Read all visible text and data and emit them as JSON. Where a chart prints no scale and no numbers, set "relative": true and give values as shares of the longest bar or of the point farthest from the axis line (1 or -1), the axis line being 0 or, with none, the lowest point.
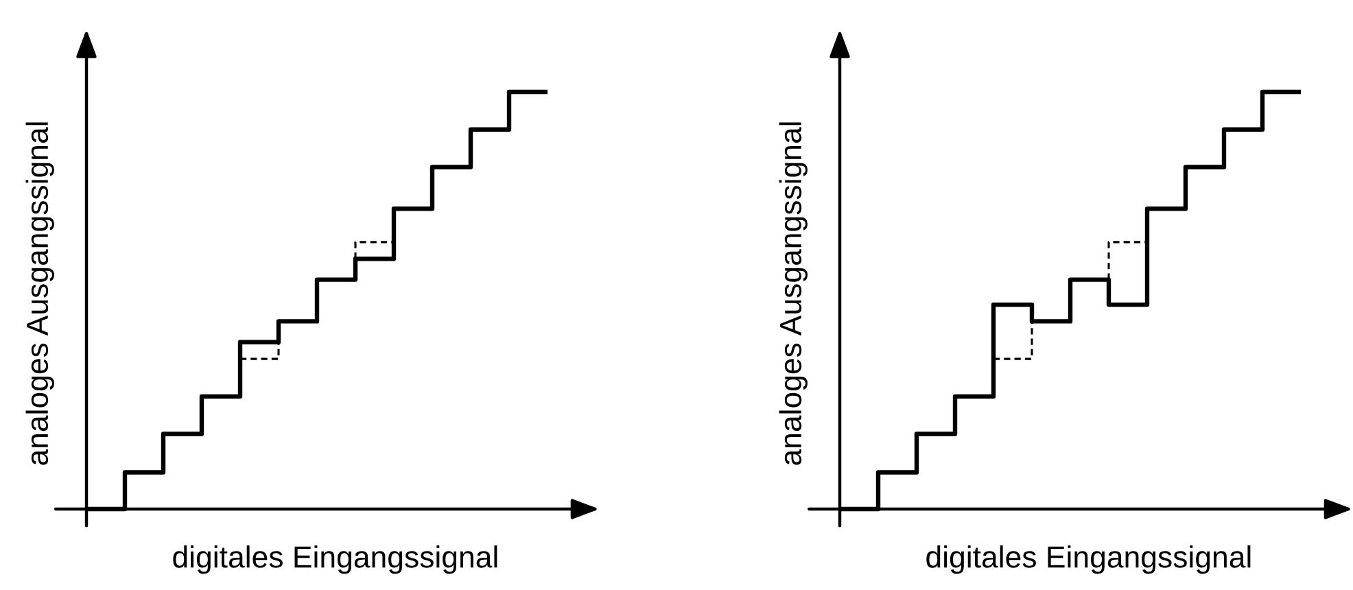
{
  "chart_data": [
    {
      "type": "step",
      "relative": true,
      "xlabel": "digitales Eingangssignal",
      "ylabel": "analoges Ausgangssignal",
      "categories": [
        null,
        null,
        null,
        null,
        null,
        null,
        null,
        null,
        null,
        null,
        null,
        null,
        null
      ],
      "series": [
        {
          "color": "#000000",
          "line_style": "solid",
          "values": [
            0,
            0.088,
            0.18,
            0.27,
            0.4,
            0.45,
            0.55,
            0.6,
            0.72,
            0.82,
            0.91,
            1.0,
            1.0
          ]
        },
        {
          "color": "#000000",
          "line_style": "dashed",
          "values": [
            null,
            null,
            null,
            null,
            0.36,
            0.45,
            null,
            0.64,
            0.72,
            null,
            null,
            null,
            null
          ]
        }
      ]
    },
    {
      "type": "step",
      "relative": true,
      "xlabel": "digitales Eingangssignal",
      "ylabel": "analoges Ausgangssignal",
      "categories": [
        null,
        null,
        null,
        null,
        null,
        null,
        null,
        null,
        null,
        null,
        null,
        null,
        null
      ],
      "series": [
        {
          "color": "#000000",
          "line_style": "solid",
          "values": [
            0,
            0.088,
            0.18,
            0.27,
            0.49,
            0.45,
            0.55,
            0.49,
            0.72,
            0.82,
            0.91,
            1.0,
            1.0
          ]
        },
        {
          "color": "#000000",
          "line_style": "dashed",
          "values": [
            null,
            null,
            null,
            null,
            0.36,
            0.45,
            null,
            0.64,
            0.72,
            null,
            null,
            null,
            null
          ]
        }
      ]
    }
  ]
}
